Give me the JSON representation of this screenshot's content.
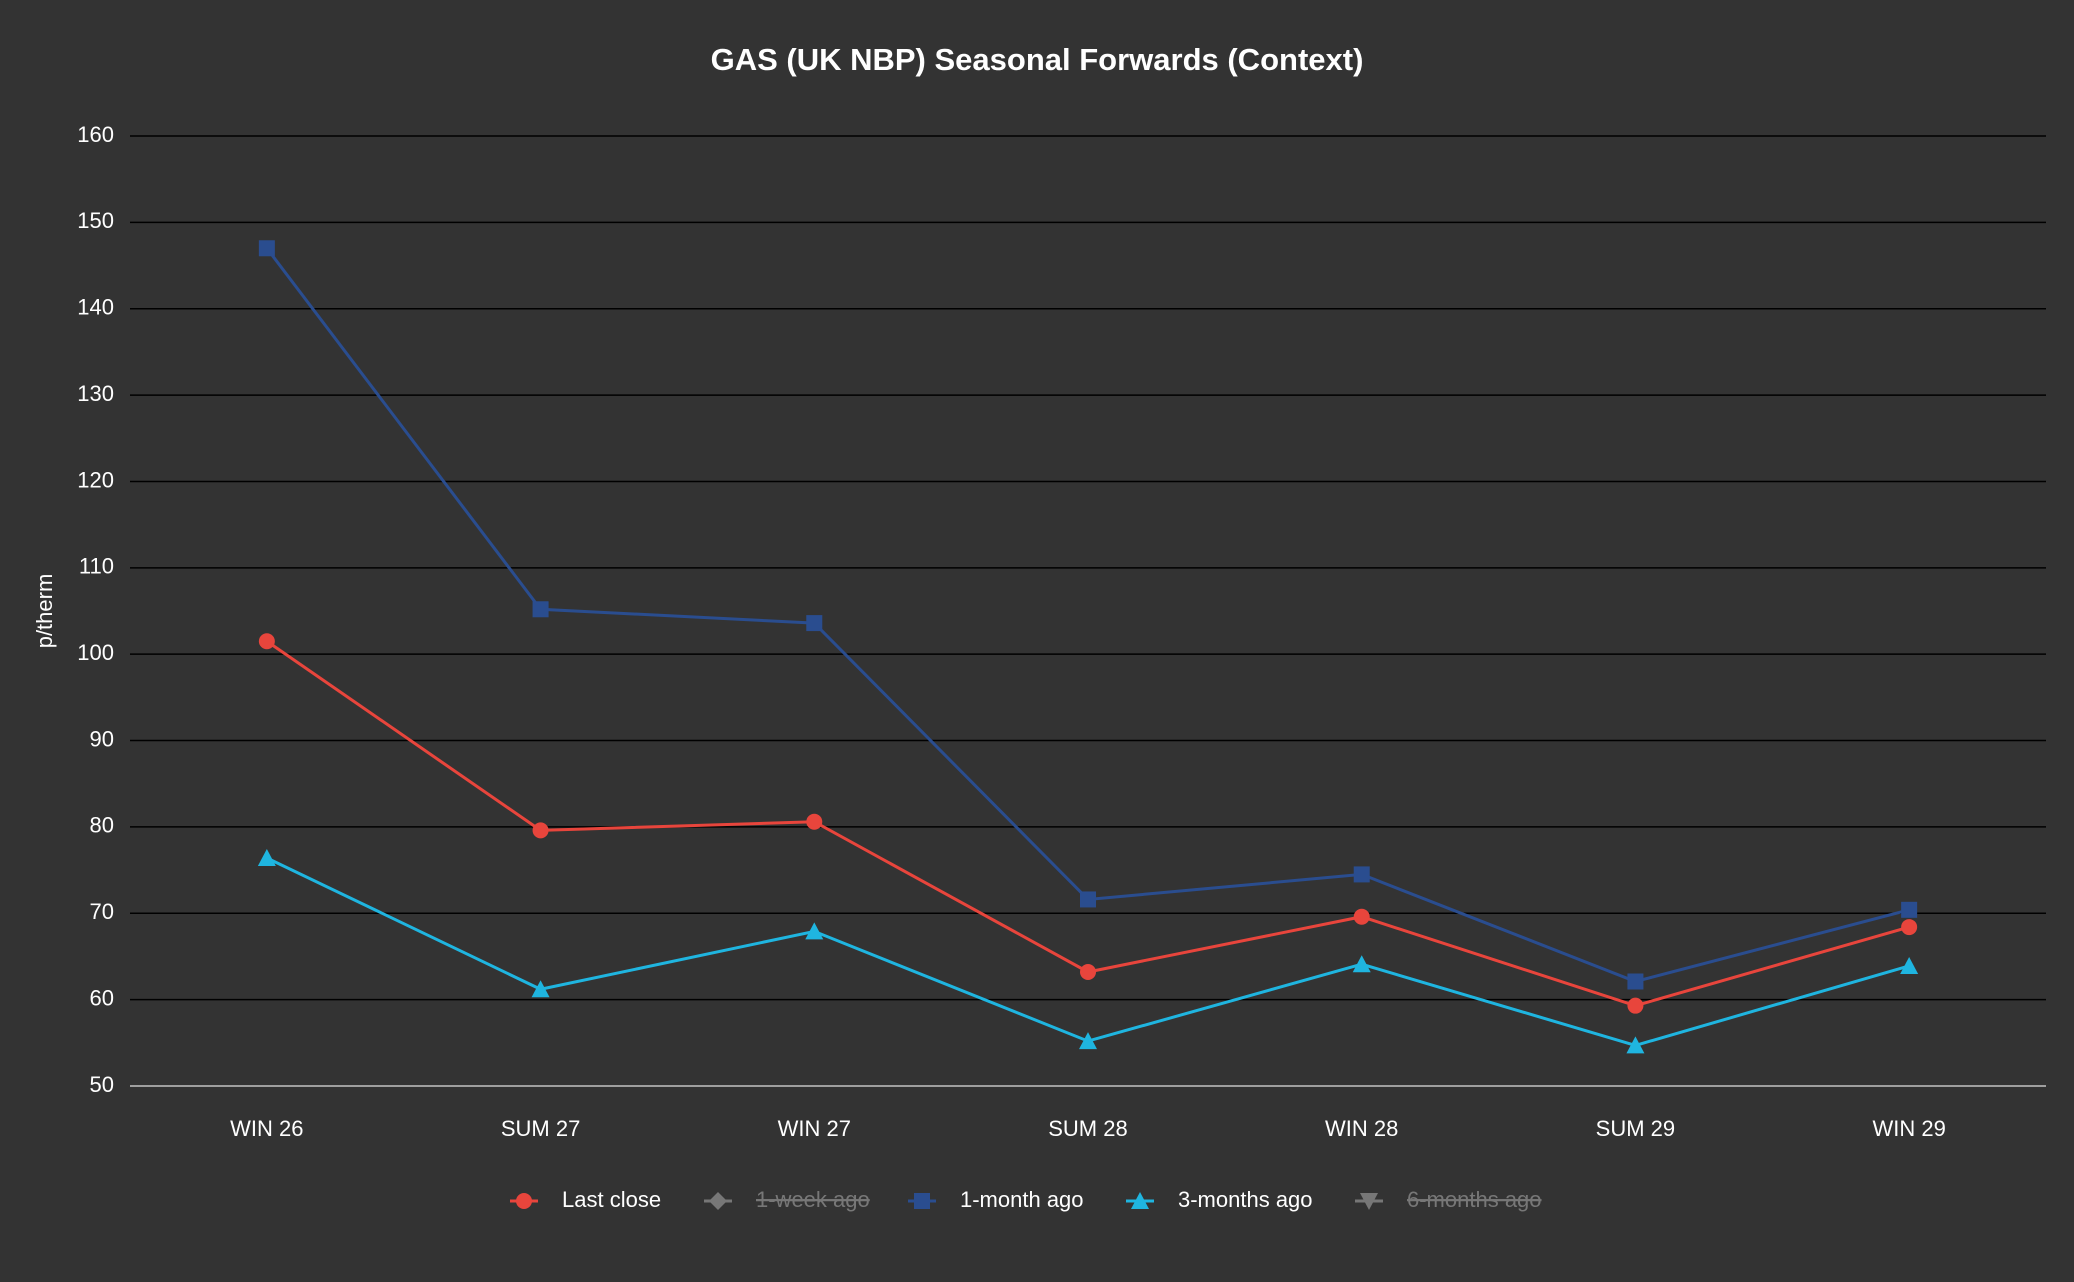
{
  "chart_data": {
    "type": "line",
    "title": "GAS (UK NBP) Seasonal Forwards (Context)",
    "y_label": "p/therm",
    "categories": [
      "WIN 26",
      "SUM 27",
      "WIN 27",
      "SUM 28",
      "WIN 28",
      "SUM 29",
      "WIN 29"
    ],
    "ylim": [
      50,
      160
    ],
    "yticks": [
      50,
      60,
      70,
      80,
      90,
      100,
      110,
      120,
      130,
      140,
      150,
      160
    ],
    "grid": true,
    "legend": "bottom",
    "series": [
      {
        "name": "Last close",
        "color": "#e8453c",
        "marker": "circle",
        "hidden": false,
        "values": [
          101.5,
          79.6,
          80.6,
          63.2,
          69.6,
          59.3,
          68.4
        ]
      },
      {
        "name": "1-week ago",
        "color": "#777777",
        "marker": "diamond",
        "hidden": true,
        "values": [
          null,
          null,
          null,
          null,
          null,
          null,
          null
        ]
      },
      {
        "name": "1-month ago",
        "color": "#2a4d8f",
        "marker": "square",
        "hidden": false,
        "values": [
          147.0,
          105.2,
          103.6,
          71.6,
          74.5,
          62.1,
          70.4
        ]
      },
      {
        "name": "3-months ago",
        "color": "#1fb5e0",
        "marker": "triangle",
        "hidden": false,
        "values": [
          76.4,
          61.2,
          67.9,
          55.2,
          64.1,
          54.7,
          63.9
        ]
      },
      {
        "name": "6-months ago",
        "color": "#777777",
        "marker": "triangle-down",
        "hidden": true,
        "values": [
          null,
          null,
          null,
          null,
          null,
          null,
          null
        ]
      }
    ]
  }
}
